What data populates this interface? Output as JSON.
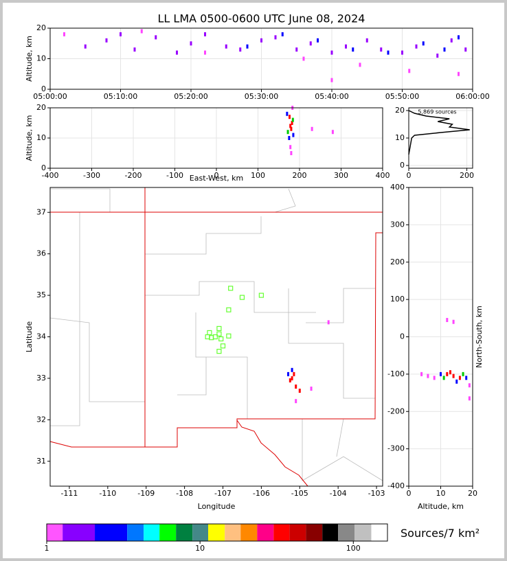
{
  "chart_data": [
    {
      "type": "scatter",
      "title": "LL LMA 0500-0600 UTC June 08, 2024",
      "ylabel": "Altitude, km",
      "xlim": [
        0,
        60
      ],
      "xticks": [
        {
          "value": 0,
          "label": "05:00:00"
        },
        {
          "value": 10,
          "label": "05:10:00"
        },
        {
          "value": 20,
          "label": "05:20:00"
        },
        {
          "value": 30,
          "label": "05:30:00"
        },
        {
          "value": 40,
          "label": "05:40:00"
        },
        {
          "value": 50,
          "label": "05:50:00"
        },
        {
          "value": 60,
          "label": "06:00:00"
        }
      ],
      "ylim": [
        0,
        20
      ],
      "yticks": [
        0,
        10,
        20
      ],
      "grid": true,
      "series": [
        {
          "color": "#9900ff",
          "x": [
            5,
            8,
            10,
            12,
            15,
            18,
            20,
            22,
            25,
            27,
            30,
            32,
            35,
            37,
            40,
            42,
            45,
            47,
            50,
            52,
            55,
            57,
            59
          ],
          "y": [
            14,
            16,
            18,
            13,
            17,
            12,
            15,
            18,
            14,
            13,
            16,
            17,
            13,
            15,
            12,
            14,
            16,
            13,
            12,
            14,
            11,
            16,
            13
          ]
        },
        {
          "color": "#0000ff",
          "x": [
            28,
            33,
            38,
            43,
            48,
            53,
            56,
            58
          ],
          "y": [
            14,
            18,
            16,
            13,
            12,
            15,
            13,
            17
          ]
        },
        {
          "color": "#ff44ff",
          "x": [
            2,
            13,
            22,
            36,
            44,
            51,
            58,
            40
          ],
          "y": [
            18,
            19,
            12,
            10,
            8,
            6,
            5,
            3
          ]
        }
      ]
    },
    {
      "type": "scatter",
      "ylabel": "Altitude, km",
      "xlabel": "East-West, km",
      "xlim": [
        -400,
        400
      ],
      "xticks": [
        -400,
        -300,
        -200,
        -100,
        0,
        100,
        200,
        300,
        400
      ],
      "ylim": [
        0,
        20
      ],
      "yticks": [
        0,
        10,
        20
      ],
      "grid": true,
      "series": [
        {
          "color": "#ff0000",
          "x": [
            178,
            182,
            180,
            176
          ],
          "y": [
            14,
            15,
            13,
            17
          ]
        },
        {
          "color": "#0000ff",
          "x": [
            170,
            185,
            175
          ],
          "y": [
            18,
            11,
            10
          ]
        },
        {
          "color": "#00cc00",
          "x": [
            184,
            172
          ],
          "y": [
            16,
            12
          ]
        },
        {
          "color": "#ff44ff",
          "x": [
            180,
            178,
            230,
            280,
            183
          ],
          "y": [
            5,
            7,
            13,
            12,
            20
          ]
        }
      ]
    },
    {
      "type": "line",
      "annotation": "5,869 sources",
      "xlim": [
        0,
        220
      ],
      "xticks": [
        0,
        200
      ],
      "ylim": [
        -1,
        21
      ],
      "yticks": [
        0,
        10,
        20
      ],
      "grid": true,
      "series": [
        {
          "color": "#000000",
          "x": [
            0,
            5,
            10,
            20,
            110,
            210,
            140,
            150,
            100,
            140,
            60,
            20,
            0
          ],
          "y": [
            4,
            7,
            10,
            11,
            12,
            13,
            14,
            15,
            16,
            17,
            18,
            19,
            20
          ]
        }
      ]
    },
    {
      "type": "scatter",
      "xlabel": "Longitude",
      "ylabel": "Latitude",
      "xlim": [
        -111.5,
        -102.84
      ],
      "xticks": [
        -111,
        -110,
        -109,
        -108,
        -107,
        -106,
        -105,
        -104,
        -103
      ],
      "ylim": [
        30.4,
        37.6
      ],
      "yticks": [
        31,
        32,
        33,
        34,
        35,
        36,
        37
      ],
      "grid": false,
      "series": [
        {
          "color": "#ff0000",
          "x": [
            -105.2,
            -105.15,
            -105.25,
            -105.1,
            -105.0
          ],
          "y": [
            33.0,
            33.1,
            32.95,
            32.8,
            32.7
          ]
        },
        {
          "color": "#0000ff",
          "x": [
            -105.3,
            -105.2
          ],
          "y": [
            33.1,
            33.2
          ]
        },
        {
          "color": "#ff44ff",
          "x": [
            -104.7,
            -104.25,
            -105.1
          ],
          "y": [
            32.75,
            34.35,
            32.45
          ]
        },
        {
          "color": "#66ff33",
          "marker": "square",
          "x": [
            -106.8,
            -106.5,
            -106.0,
            -106.85,
            -107.1,
            -107.35,
            -107.1,
            -107.4,
            -107.2,
            -107.3,
            -107.05,
            -106.85,
            -107.0,
            -107.1
          ],
          "y": [
            35.17,
            34.95,
            35.0,
            34.65,
            34.2,
            34.1,
            34.07,
            34.0,
            34.0,
            33.98,
            33.95,
            34.02,
            33.78,
            33.65
          ]
        }
      ]
    },
    {
      "type": "scatter",
      "xlabel": "Altitude, km",
      "ylabel": "North-South, km",
      "ylabel_side": "right",
      "xlim": [
        0,
        20
      ],
      "xticks": [
        0,
        10,
        20
      ],
      "ylim": [
        -400,
        400
      ],
      "yticks": [
        -400,
        -300,
        -200,
        -100,
        0,
        100,
        200,
        300,
        400
      ],
      "grid": true,
      "series": [
        {
          "color": "#ff0000",
          "x": [
            12,
            14,
            16,
            13
          ],
          "y": [
            -100,
            -105,
            -110,
            -95
          ]
        },
        {
          "color": "#0000ff",
          "x": [
            10,
            18,
            15
          ],
          "y": [
            -100,
            -110,
            -120
          ]
        },
        {
          "color": "#00cc00",
          "x": [
            17,
            11
          ],
          "y": [
            -100,
            -110
          ]
        },
        {
          "color": "#ff44ff",
          "x": [
            4,
            6,
            8,
            19,
            19,
            12,
            14
          ],
          "y": [
            -100,
            -105,
            -110,
            -130,
            -165,
            45,
            40
          ]
        }
      ]
    },
    {
      "type": "colorbar",
      "label": "Sources/7 km²",
      "log": true,
      "xlim": [
        1,
        167
      ],
      "xticks": [
        1,
        10,
        100
      ],
      "bins": [
        1,
        1.27,
        2.06,
        3.35,
        4.29,
        5.44,
        6.97,
        8.93,
        11.3,
        14.5,
        18.4,
        23.6,
        30.2,
        38.3,
        49.1,
        62.8,
        79.6,
        102,
        131,
        167
      ],
      "colors": [
        "#ff55ff",
        "#8800ff",
        "#0000ff",
        "#0077ff",
        "#00ffff",
        "#00ff00",
        "#008040",
        "#448888",
        "#ffff00",
        "#ffc080",
        "#ff8800",
        "#ff0088",
        "#ff0000",
        "#cc0000",
        "#880000",
        "#000000",
        "#888888",
        "#c0c0c0",
        "#ffffff"
      ]
    }
  ]
}
